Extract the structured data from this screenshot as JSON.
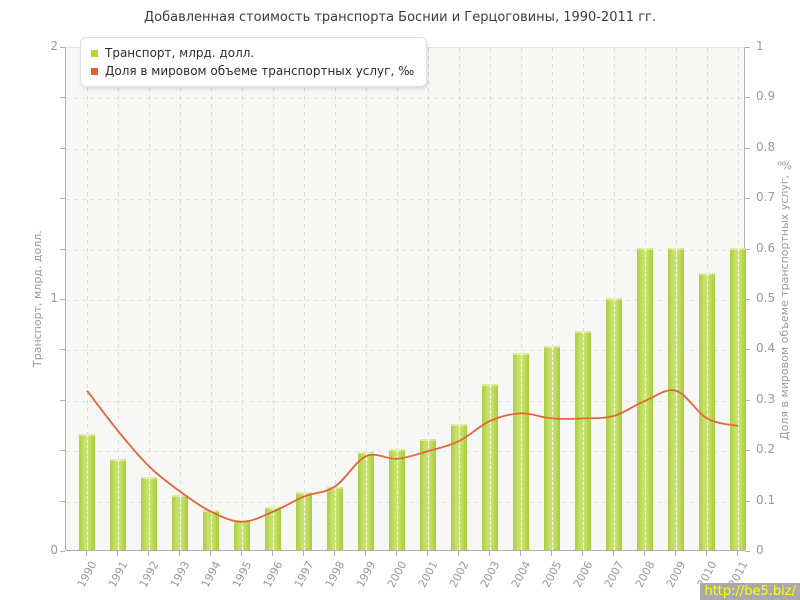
{
  "title": "Добавленная стоимость транспорта Боснии и Герцоговины, 1990-2011 гг.",
  "legend": {
    "items": [
      {
        "label": "Транспорт, млрд. долл.",
        "marker_color": "#b9d42e"
      },
      {
        "label": "Доля в мировом объеме транспортных услуг, ‰",
        "marker_color": "#e2622d"
      }
    ]
  },
  "watermark": {
    "text": "http://be5.biz/"
  },
  "colors": {
    "bar": "#b9d42e",
    "line": "#e2663c",
    "grid": "#e2e2e2",
    "axis": "#b0b0b0",
    "muted_text": "#999999",
    "title_text": "#3c3c3c",
    "watermark_bg": "#a9a9a9",
    "watermark_text": "#ffff00"
  },
  "chart_data": {
    "type": "bar",
    "categories": [
      "1990",
      "1991",
      "1992",
      "1993",
      "1994",
      "1995",
      "1996",
      "1997",
      "1998",
      "1999",
      "2000",
      "2001",
      "2002",
      "2003",
      "2004",
      "2005",
      "2006",
      "2007",
      "2008",
      "2009",
      "2010",
      "2011"
    ],
    "series": [
      {
        "name": "Транспорт, млрд. долл.",
        "type": "bar",
        "axis": "left",
        "values": [
          0.46,
          0.36,
          0.29,
          0.22,
          0.16,
          0.12,
          0.17,
          0.23,
          0.25,
          0.39,
          0.4,
          0.44,
          0.5,
          0.66,
          0.78,
          0.81,
          0.87,
          1.0,
          1.2,
          1.2,
          1.1,
          1.2
        ]
      },
      {
        "name": "Доля в мировом объеме транспортных услуг, ‰",
        "type": "line",
        "axis": "right",
        "values": [
          0.32,
          0.24,
          0.17,
          0.12,
          0.08,
          0.06,
          0.08,
          0.11,
          0.13,
          0.19,
          0.185,
          0.2,
          0.22,
          0.26,
          0.275,
          0.265,
          0.265,
          0.27,
          0.3,
          0.32,
          0.265,
          0.25
        ]
      }
    ],
    "left_axis": {
      "title": "Транспорт, млрд. долл.",
      "min": 0,
      "max": 2,
      "labeled_ticks": [
        0,
        1,
        2
      ],
      "minor_tick_step": 0.2
    },
    "right_axis": {
      "title": "Доля в мировом объеме транспортных услуг, ‰",
      "min": 0,
      "max": 1,
      "tick_step": 0.1
    },
    "legend_position": "top-left",
    "grid": "dashed"
  }
}
